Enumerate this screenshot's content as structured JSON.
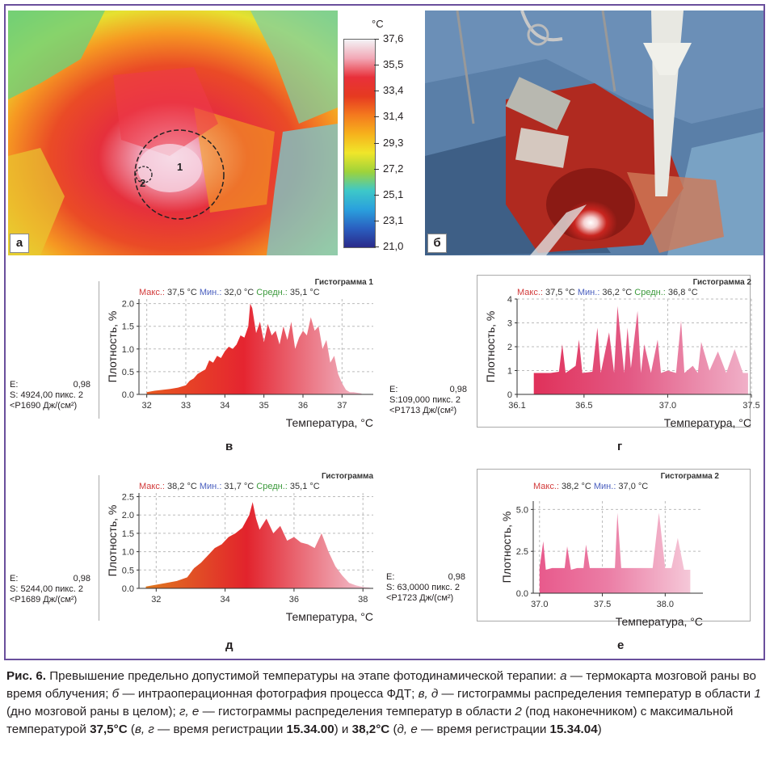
{
  "panels": {
    "a": {
      "letter": "а",
      "region1": "1",
      "region2": "2"
    },
    "b": {
      "letter": "б"
    },
    "v": {
      "letter": "в"
    },
    "g": {
      "letter": "г"
    },
    "d": {
      "letter": "д"
    },
    "e": {
      "letter": "е"
    }
  },
  "colorbar": {
    "unit": "°C",
    "ticks": [
      "37,6",
      "35,5",
      "33,4",
      "31,4",
      "29,3",
      "27,2",
      "25,1",
      "23,1",
      "21,0"
    ],
    "colors": [
      "#f3f3f6",
      "#f2a7b5",
      "#e8303a",
      "#e63a20",
      "#f47a1e",
      "#f6b21c",
      "#f0e62a",
      "#9fd33a",
      "#3ec8c8",
      "#2aa0dd",
      "#2a5fc0",
      "#2a2a8a"
    ]
  },
  "chart_data": [
    {
      "id": "v",
      "type": "area",
      "title": "Гистограмма  1",
      "stats": {
        "max_label": "Макс.:",
        "max": "37,5 °C",
        "min_label": "Мин.:",
        "min": "32,0 °C",
        "avg_label": "Средн.:",
        "avg": "35,1 °C"
      },
      "xlabel": "Температура, °C",
      "ylabel": "Плотность, %",
      "xlim": [
        31.8,
        37.8
      ],
      "ylim": [
        0,
        2.1
      ],
      "xticks": [
        32,
        33,
        34,
        35,
        36,
        37
      ],
      "xticklabels": [
        "32",
        "33",
        "34",
        "35",
        "36",
        "37"
      ],
      "yticks": [
        0,
        0.5,
        1.0,
        1.5,
        2.0
      ],
      "yticklabels": [
        "0.0",
        "0.5",
        "1.0",
        "1.5",
        "2.0"
      ],
      "x": [
        32.0,
        32.2,
        32.4,
        32.6,
        32.8,
        33.0,
        33.1,
        33.2,
        33.3,
        33.4,
        33.5,
        33.6,
        33.7,
        33.8,
        33.9,
        34.0,
        34.1,
        34.2,
        34.3,
        34.4,
        34.5,
        34.6,
        34.65,
        34.7,
        34.8,
        34.9,
        35.0,
        35.1,
        35.2,
        35.3,
        35.4,
        35.5,
        35.6,
        35.7,
        35.8,
        35.9,
        36.0,
        36.1,
        36.2,
        36.3,
        36.4,
        36.5,
        36.6,
        36.7,
        36.8,
        36.9,
        37.0,
        37.1,
        37.2,
        37.3,
        37.5
      ],
      "y": [
        0.05,
        0.08,
        0.1,
        0.12,
        0.15,
        0.2,
        0.3,
        0.35,
        0.45,
        0.5,
        0.55,
        0.75,
        0.7,
        0.85,
        0.8,
        0.95,
        1.05,
        1.0,
        1.1,
        1.3,
        1.25,
        1.5,
        2.0,
        1.9,
        1.35,
        1.6,
        1.15,
        1.55,
        1.3,
        1.4,
        1.1,
        1.5,
        1.2,
        1.6,
        1.0,
        1.25,
        1.4,
        1.3,
        1.7,
        1.4,
        1.5,
        1.0,
        1.2,
        0.7,
        0.85,
        0.45,
        0.25,
        0.1,
        0.05,
        0.05,
        0.02
      ]
    },
    {
      "id": "g",
      "type": "area",
      "title": "Гистограмма  2",
      "stats": {
        "max_label": "Макс.:",
        "max": "37,5 °C",
        "min_label": "Мин.:",
        "min": "36,2 °C",
        "avg_label": "Средн.:",
        "avg": "36,8 °C"
      },
      "xlabel": "Температура, °C",
      "ylabel": "Плотность, %",
      "xlim": [
        36.1,
        37.5
      ],
      "ylim": [
        0,
        4
      ],
      "xticks": [
        36.1,
        36.5,
        37.0,
        37.5
      ],
      "xticklabels": [
        "36.1",
        "36.5",
        "37.0",
        "37.5"
      ],
      "yticks": [
        0,
        1,
        2,
        3,
        4
      ],
      "yticklabels": [
        "0",
        "1",
        "2",
        "3",
        "4"
      ],
      "x": [
        36.2,
        36.3,
        36.35,
        36.37,
        36.39,
        36.45,
        36.47,
        36.49,
        36.55,
        36.58,
        36.6,
        36.65,
        36.68,
        36.7,
        36.74,
        36.76,
        36.78,
        36.82,
        36.84,
        36.86,
        36.9,
        36.94,
        36.96,
        37.0,
        37.05,
        37.08,
        37.1,
        37.15,
        37.18,
        37.2,
        37.25,
        37.3,
        37.35,
        37.4,
        37.45,
        37.48
      ],
      "y": [
        0.9,
        0.9,
        0.95,
        2.1,
        0.9,
        1.2,
        2.3,
        0.9,
        0.95,
        2.8,
        0.9,
        2.6,
        0.9,
        3.7,
        0.9,
        2.8,
        1.1,
        3.5,
        0.9,
        2.1,
        0.9,
        2.3,
        0.9,
        1.0,
        0.9,
        3.1,
        0.9,
        1.2,
        0.9,
        2.2,
        1.0,
        1.8,
        0.9,
        1.9,
        0.9,
        0.9
      ]
    },
    {
      "id": "d",
      "type": "area",
      "title": "Гистограмма",
      "stats": {
        "max_label": "Макс.:",
        "max": "38,2 °C",
        "min_label": "Мин.:",
        "min": "31,7 °C",
        "avg_label": "Средн.:",
        "avg": "35,1 °C"
      },
      "xlabel": "Температура, °C",
      "ylabel": "Плотность, %",
      "xlim": [
        31.5,
        38.3
      ],
      "ylim": [
        0,
        2.6
      ],
      "xticks": [
        32,
        34,
        36,
        38
      ],
      "xticklabels": [
        "32",
        "34",
        "36",
        "38"
      ],
      "yticks": [
        0,
        0.5,
        1.0,
        1.5,
        2.0,
        2.5
      ],
      "yticklabels": [
        "0.0",
        "0.5",
        "1.0",
        "1.5",
        "2.0",
        "2.5"
      ],
      "x": [
        31.7,
        32.0,
        32.3,
        32.6,
        32.9,
        33.1,
        33.3,
        33.5,
        33.7,
        33.9,
        34.1,
        34.3,
        34.5,
        34.7,
        34.8,
        34.9,
        35.0,
        35.2,
        35.4,
        35.6,
        35.8,
        36.0,
        36.2,
        36.4,
        36.6,
        36.8,
        37.0,
        37.2,
        37.4,
        37.6,
        37.8,
        38.0,
        38.2
      ],
      "y": [
        0.05,
        0.1,
        0.15,
        0.2,
        0.3,
        0.55,
        0.7,
        0.9,
        1.1,
        1.2,
        1.4,
        1.5,
        1.65,
        2.0,
        2.35,
        1.9,
        1.6,
        1.9,
        1.5,
        1.7,
        1.3,
        1.4,
        1.25,
        1.2,
        1.1,
        1.5,
        1.0,
        0.6,
        0.35,
        0.15,
        0.08,
        0.04,
        0.02
      ]
    },
    {
      "id": "e",
      "type": "area",
      "title": "Гистограмма 2",
      "stats": {
        "max_label": "Макс.:",
        "max": "38,2 °C",
        "min_label": "Мин.:",
        "min": "37,0 °C"
      },
      "xlabel": "Температура, °C",
      "ylabel": "Плотность, %",
      "xlim": [
        36.95,
        38.3
      ],
      "ylim": [
        0,
        5.5
      ],
      "xticks": [
        37.0,
        37.5,
        38.0
      ],
      "xticklabels": [
        "37.0",
        "37.5",
        "38.0"
      ],
      "yticks": [
        0,
        2.5,
        5.0
      ],
      "yticklabels": [
        "0.0",
        "2.5",
        "5.0"
      ],
      "x": [
        37.0,
        37.03,
        37.05,
        37.1,
        37.2,
        37.22,
        37.25,
        37.3,
        37.35,
        37.37,
        37.4,
        37.5,
        37.6,
        37.62,
        37.65,
        37.7,
        37.8,
        37.9,
        37.95,
        38.0,
        38.05,
        38.1,
        38.15,
        38.2
      ],
      "y": [
        1.5,
        3.1,
        1.4,
        1.5,
        1.5,
        2.8,
        1.4,
        1.5,
        1.5,
        2.9,
        1.5,
        1.5,
        1.5,
        4.8,
        1.5,
        1.5,
        1.5,
        1.5,
        4.8,
        1.5,
        1.5,
        3.3,
        1.4,
        1.4
      ]
    }
  ],
  "chart_meta": {
    "v": {
      "e_label": "E:",
      "e_val": "0,98",
      "s_line": "S: 4924,00 пикс. 2",
      "p_line": "<P1690 Дж/(см²)"
    },
    "g": {
      "e_label": "E:",
      "e_val": "0,98",
      "s_line": "S:109,000 пикс. 2",
      "p_line": "<P1713 Дж/(см²)"
    },
    "d": {
      "e_label": "E:",
      "e_val": "0,98",
      "s_line": "S: 5244,00 пикс. 2",
      "p_line": "<P1689 Дж/(см²)"
    },
    "e": {
      "e_label": "E:",
      "e_val": "0,98",
      "s_line": "S: 63,0000 пикс. 2",
      "p_line": "<P1723 Дж/(см²)"
    }
  },
  "caption": {
    "fig": "Рис. 6.",
    "t1": " Превышение предельно допустимой температуры на этапе фотодинамической терапии: ",
    "a": "а",
    "t2": " — термокарта мозговой раны во время облучения; ",
    "b": "б",
    "t3": " — интраоперационная фотография процесса ФДТ; ",
    "vd": "в, д",
    "t4": " — гистограммы распределения температур в области ",
    "one": "1",
    "t5": " (дно мозговой раны в целом); ",
    "ge": "г, е",
    "t6": " — гистограммы распределения температур в области ",
    "two": "2",
    "t7": " (под наконечником) с максимальной температурой ",
    "temp1": "37,5°C",
    "t8": " (",
    "vg": "в, г",
    "t9": " — время регистрации ",
    "time1": "15.34.00",
    "t10": ") и ",
    "temp2": "38,2°C",
    "t11": " (",
    "de": "д, е",
    "t12": " — время регистрации ",
    "time2": "15.34.04",
    "t13": ")"
  }
}
